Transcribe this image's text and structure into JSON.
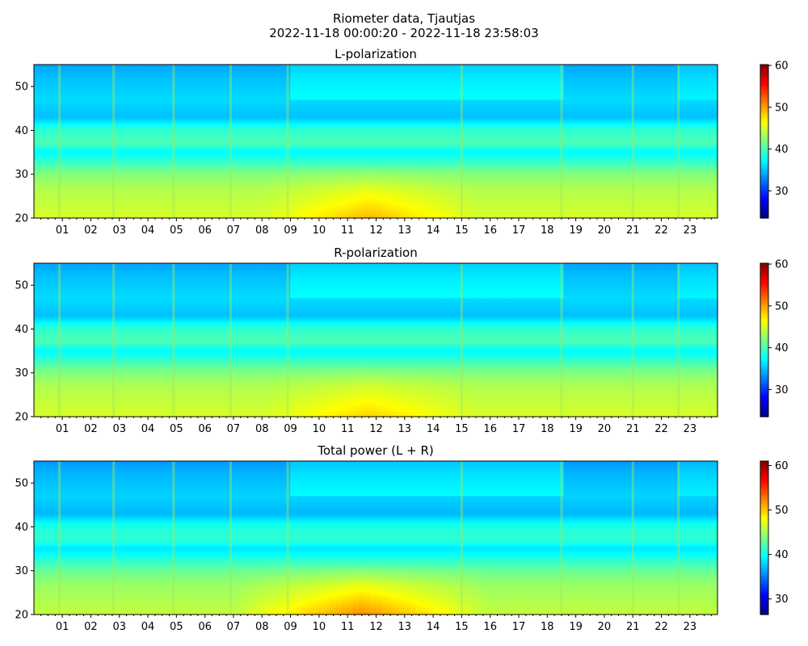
{
  "figure": {
    "title_line1": "Riometer data, Tjautjas",
    "title_line2": "2022-11-18 00:00:20 - 2022-11-18 23:58:03"
  },
  "chart_data": [
    {
      "type": "heatmap",
      "title": "L-polarization",
      "xlabel": "",
      "ylabel": "",
      "x_ticks": [
        "01",
        "02",
        "03",
        "04",
        "05",
        "06",
        "07",
        "08",
        "09",
        "10",
        "11",
        "12",
        "13",
        "14",
        "15",
        "16",
        "17",
        "18",
        "19",
        "20",
        "21",
        "22",
        "23"
      ],
      "x_range_hours": [
        0.0056,
        23.9675
      ],
      "y_ticks": [
        20,
        30,
        40,
        50
      ],
      "ylim": [
        20,
        55
      ],
      "colorbar": {
        "ticks": [
          30,
          40,
          50,
          60
        ],
        "range": [
          23.5,
          60.2
        ],
        "colormap": "jet"
      },
      "features": {
        "background_by_frequency": [
          [
            20,
            45
          ],
          [
            25,
            44
          ],
          [
            27,
            43.5
          ],
          [
            30,
            42
          ],
          [
            35,
            37
          ],
          [
            37,
            40
          ],
          [
            40,
            39
          ],
          [
            43,
            35
          ],
          [
            47,
            36
          ],
          [
            52,
            35
          ],
          [
            55,
            34
          ]
        ],
        "daytime_enhancement_hours": [
          8.0,
          15.5
        ],
        "daytime_enhancement_peak": 49,
        "vertical_spike_hours": [
          0.9,
          2.8,
          4.9,
          6.9,
          8.9,
          15.0,
          18.5,
          21.0,
          22.6
        ]
      }
    },
    {
      "type": "heatmap",
      "title": "R-polarization",
      "xlabel": "",
      "ylabel": "",
      "x_ticks": [
        "01",
        "02",
        "03",
        "04",
        "05",
        "06",
        "07",
        "08",
        "09",
        "10",
        "11",
        "12",
        "13",
        "14",
        "15",
        "16",
        "17",
        "18",
        "19",
        "20",
        "21",
        "22",
        "23"
      ],
      "x_range_hours": [
        0.0056,
        23.9675
      ],
      "y_ticks": [
        20,
        30,
        40,
        50
      ],
      "ylim": [
        20,
        55
      ],
      "colorbar": {
        "ticks": [
          30,
          40,
          50,
          60
        ],
        "range": [
          23.5,
          60.2
        ],
        "colormap": "jet"
      },
      "features": {
        "background_by_frequency": [
          [
            20,
            45
          ],
          [
            25,
            44
          ],
          [
            27,
            43.5
          ],
          [
            30,
            42
          ],
          [
            35,
            37
          ],
          [
            37,
            40
          ],
          [
            40,
            39
          ],
          [
            43,
            35
          ],
          [
            47,
            36
          ],
          [
            52,
            35
          ],
          [
            55,
            34
          ]
        ],
        "daytime_enhancement_hours": [
          8.0,
          15.5
        ],
        "daytime_enhancement_peak": 48,
        "vertical_spike_hours": [
          0.9,
          2.8,
          4.9,
          6.9,
          8.9,
          15.0,
          18.5,
          21.0,
          22.6
        ]
      }
    },
    {
      "type": "heatmap",
      "title": "Total power (L + R)",
      "xlabel": "",
      "ylabel": "",
      "x_ticks": [
        "01",
        "02",
        "03",
        "04",
        "05",
        "06",
        "07",
        "08",
        "09",
        "10",
        "11",
        "12",
        "13",
        "14",
        "15",
        "16",
        "17",
        "18",
        "19",
        "20",
        "21",
        "22",
        "23"
      ],
      "x_range_hours": [
        0.0056,
        23.9675
      ],
      "y_ticks": [
        20,
        30,
        40,
        50
      ],
      "ylim": [
        20,
        55
      ],
      "colorbar": {
        "ticks": [
          30,
          40,
          50,
          60
        ],
        "range": [
          26.5,
          61.0
        ],
        "colormap": "jet"
      },
      "features": {
        "background_by_frequency": [
          [
            20,
            46
          ],
          [
            25,
            45
          ],
          [
            27,
            44.5
          ],
          [
            30,
            43
          ],
          [
            35,
            38.5
          ],
          [
            37,
            41
          ],
          [
            40,
            40.5
          ],
          [
            43,
            37
          ],
          [
            47,
            38
          ],
          [
            52,
            37
          ],
          [
            55,
            36
          ]
        ],
        "daytime_enhancement_hours": [
          7.0,
          16.0
        ],
        "daytime_enhancement_peak": 51,
        "vertical_spike_hours": [
          0.9,
          2.8,
          4.9,
          6.9,
          8.9,
          15.0,
          18.5,
          21.0,
          22.6
        ]
      }
    }
  ]
}
